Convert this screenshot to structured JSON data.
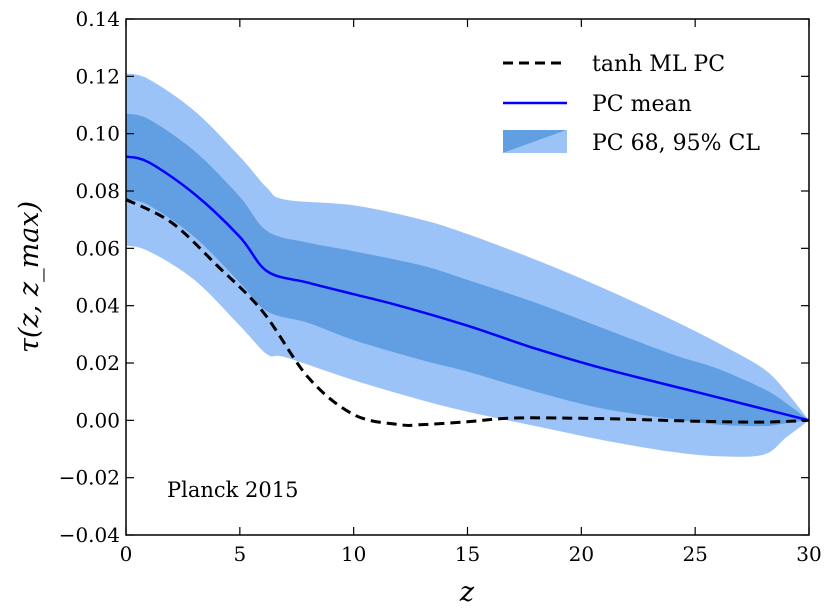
{
  "chart_data": {
    "type": "line",
    "xlabel": "z",
    "ylabel": "τ(z, z_max)",
    "xlim": [
      0,
      30
    ],
    "ylim": [
      -0.04,
      0.14
    ],
    "xticks": [
      0,
      5,
      10,
      15,
      20,
      25,
      30
    ],
    "xtick_labels": [
      "0",
      "5",
      "10",
      "15",
      "20",
      "25",
      "30"
    ],
    "yticks": [
      -0.04,
      -0.02,
      0.0,
      0.02,
      0.04,
      0.06,
      0.08,
      0.1,
      0.12,
      0.14
    ],
    "ytick_labels": [
      "−0.04",
      "−0.02",
      "0.00",
      "0.02",
      "0.04",
      "0.06",
      "0.08",
      "0.10",
      "0.12",
      "0.14"
    ],
    "grid": false,
    "legend_position": "top-right",
    "annotation": "Planck 2015",
    "series": [
      {
        "name": "tanh ML PC",
        "style": "dashed",
        "color": "#000000",
        "x": [
          0,
          2,
          4,
          6,
          8,
          10,
          12,
          13,
          15,
          17,
          20,
          22,
          25,
          28,
          30
        ],
        "y": [
          0.077,
          0.069,
          0.054,
          0.038,
          0.015,
          0.002,
          -0.0015,
          -0.0015,
          -0.0005,
          0.0008,
          0.0007,
          0.0004,
          -0.0003,
          -0.0006,
          0.0
        ]
      },
      {
        "name": "PC mean",
        "style": "solid",
        "color": "#0000ff",
        "x": [
          0,
          1,
          3,
          5,
          6.2,
          8,
          10,
          12,
          15,
          18,
          21,
          25,
          28,
          30
        ],
        "y": [
          0.092,
          0.09,
          0.079,
          0.064,
          0.052,
          0.048,
          0.044,
          0.04,
          0.033,
          0.025,
          0.018,
          0.01,
          0.004,
          0.0
        ]
      }
    ],
    "bands": [
      {
        "name": "PC 68, 95% CL",
        "level": "95",
        "color": "#9cc3f7",
        "x": [
          0,
          1,
          3,
          5,
          6.2,
          7,
          10,
          13,
          15,
          18,
          21,
          24,
          26,
          28,
          29,
          30
        ],
        "upper": [
          0.121,
          0.119,
          0.108,
          0.092,
          0.081,
          0.077,
          0.075,
          0.07,
          0.065,
          0.056,
          0.046,
          0.035,
          0.027,
          0.018,
          0.01,
          0.0
        ],
        "lower": [
          0.061,
          0.059,
          0.049,
          0.033,
          0.023,
          0.022,
          0.014,
          0.007,
          0.003,
          -0.002,
          -0.007,
          -0.011,
          -0.0125,
          -0.012,
          -0.006,
          0.0
        ]
      },
      {
        "name": "PC 68, 95% CL",
        "level": "68",
        "color": "#629fe2",
        "x": [
          0,
          1,
          3,
          5,
          6.2,
          8,
          10,
          13,
          15,
          18,
          21,
          24,
          26,
          28,
          29,
          30
        ],
        "upper": [
          0.107,
          0.105,
          0.094,
          0.078,
          0.066,
          0.062,
          0.059,
          0.054,
          0.049,
          0.041,
          0.032,
          0.023,
          0.018,
          0.011,
          0.006,
          0.0
        ],
        "lower": [
          0.077,
          0.075,
          0.064,
          0.048,
          0.038,
          0.034,
          0.028,
          0.021,
          0.017,
          0.01,
          0.004,
          0.0005,
          -0.0015,
          -0.002,
          -0.001,
          0.0
        ]
      }
    ]
  }
}
